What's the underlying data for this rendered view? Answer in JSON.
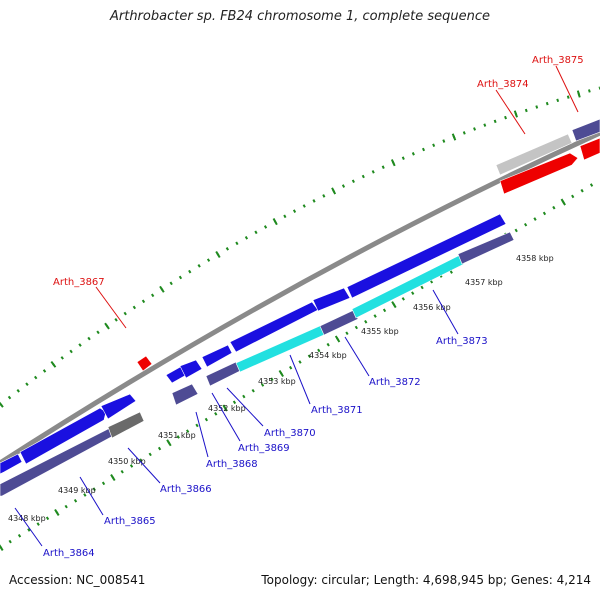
{
  "title": "Arthrobacter sp. FB24 chromosome 1, complete sequence",
  "footer": {
    "accession": "Accession: NC_008541",
    "summary": "Topology: circular; Length: 4,698,945 bp; Genes: 4,214"
  },
  "colors": {
    "backbone": "#8a8a8a",
    "ticks": "#1f8a1f",
    "blue_gene": "#1a10e0",
    "purple_gene": "#4e4b94",
    "cyan_gene": "#22e0e0",
    "grey_gene": "#6a6a6a",
    "lightgrey_gene": "#c4c4c4",
    "red_gene": "#ee0000",
    "label_blue": "#1a10c8",
    "label_red": "#dd1111"
  },
  "kbp_labels": [
    "4348 kbp",
    "4349 kbp",
    "4350 kbp",
    "4351 kbp",
    "4352 kbp",
    "4353 kbp",
    "4354 kbp",
    "4355 kbp",
    "4356 kbp",
    "4357 kbp",
    "4358 kbp"
  ],
  "gene_labels": [
    {
      "text": "Arth_3864",
      "color": "blue"
    },
    {
      "text": "Arth_3865",
      "color": "blue"
    },
    {
      "text": "Arth_3866",
      "color": "blue"
    },
    {
      "text": "Arth_3867",
      "color": "red"
    },
    {
      "text": "Arth_3868",
      "color": "blue"
    },
    {
      "text": "Arth_3869",
      "color": "blue"
    },
    {
      "text": "Arth_3870",
      "color": "blue"
    },
    {
      "text": "Arth_3871",
      "color": "blue"
    },
    {
      "text": "Arth_3872",
      "color": "blue"
    },
    {
      "text": "Arth_3873",
      "color": "blue"
    },
    {
      "text": "Arth_3874",
      "color": "red"
    },
    {
      "text": "Arth_3875",
      "color": "red"
    }
  ]
}
